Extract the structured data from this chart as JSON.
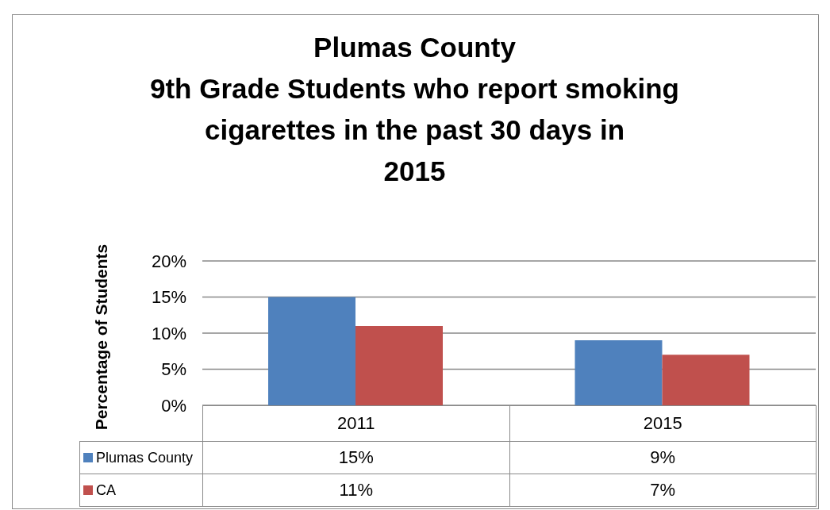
{
  "chart_data": {
    "type": "bar",
    "title": "Plumas County\n9th Grade Students who report smoking\ncigarettes in the past 30 days in\n2015",
    "ylabel": "Percentage of Students",
    "categories": [
      "2011",
      "2015"
    ],
    "series": [
      {
        "name": "Plumas County",
        "color": "#4f81bd",
        "values": [
          15,
          9
        ],
        "value_labels": [
          "15%",
          "9%"
        ]
      },
      {
        "name": "CA",
        "color": "#c0504d",
        "values": [
          11,
          7
        ],
        "value_labels": [
          "11%",
          "7%"
        ]
      }
    ],
    "ylim": [
      0,
      20
    ],
    "yticks": [
      {
        "value": 0,
        "label": "0%"
      },
      {
        "value": 5,
        "label": "5%"
      },
      {
        "value": 10,
        "label": "10%"
      },
      {
        "value": 15,
        "label": "15%"
      },
      {
        "value": 20,
        "label": "20%"
      }
    ],
    "grid": "y",
    "legend": "bottom"
  }
}
